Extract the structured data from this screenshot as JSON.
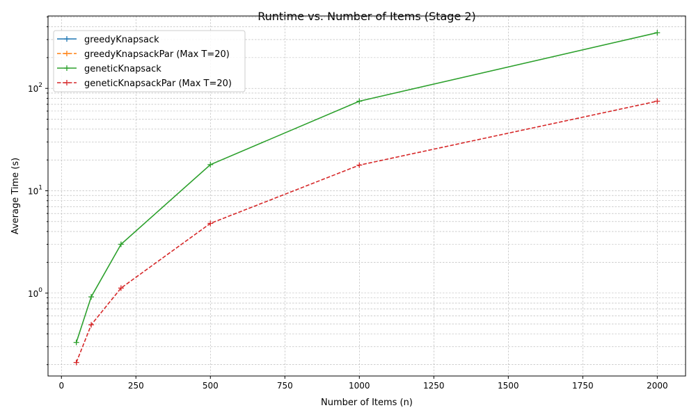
{
  "chart_data": {
    "type": "line",
    "title": "Runtime vs. Number of Items (Stage 2)",
    "xlabel": "Number of Items (n)",
    "ylabel": "Average Time (s)",
    "xlim": [
      -45,
      2095
    ],
    "ylim": [
      0.155,
      510
    ],
    "yscale": "log",
    "grid": true,
    "legend_position": "top-left",
    "x_ticks": [
      {
        "value": 0,
        "label": "0"
      },
      {
        "value": 250,
        "label": "250"
      },
      {
        "value": 500,
        "label": "500"
      },
      {
        "value": 750,
        "label": "750"
      },
      {
        "value": 1000,
        "label": "1000"
      },
      {
        "value": 1250,
        "label": "1250"
      },
      {
        "value": 1500,
        "label": "1500"
      },
      {
        "value": 1750,
        "label": "1750"
      },
      {
        "value": 2000,
        "label": "2000"
      }
    ],
    "y_ticks": [
      {
        "value": 1,
        "base": "10",
        "exp": "0"
      },
      {
        "value": 10,
        "base": "10",
        "exp": "1"
      },
      {
        "value": 100,
        "base": "10",
        "exp": "2"
      }
    ],
    "series": [
      {
        "name": "greedyKnapsack",
        "color": "#1f77b4",
        "dash": "solid",
        "x": [],
        "values": []
      },
      {
        "name": "greedyKnapsackPar (Max T=20)",
        "color": "#ff7f0e",
        "dash": "dashed",
        "x": [],
        "values": []
      },
      {
        "name": "geneticKnapsack",
        "color": "#2ca02c",
        "dash": "solid",
        "x": [
          50,
          100,
          200,
          500,
          1000,
          2000
        ],
        "values": [
          0.33,
          0.92,
          3.0,
          18,
          75,
          350
        ]
      },
      {
        "name": "geneticKnapsackPar (Max T=20)",
        "color": "#d62728",
        "dash": "dashed",
        "x": [
          50,
          100,
          200,
          500,
          1000,
          2000
        ],
        "values": [
          0.21,
          0.49,
          1.12,
          4.8,
          17.8,
          75
        ]
      }
    ]
  }
}
